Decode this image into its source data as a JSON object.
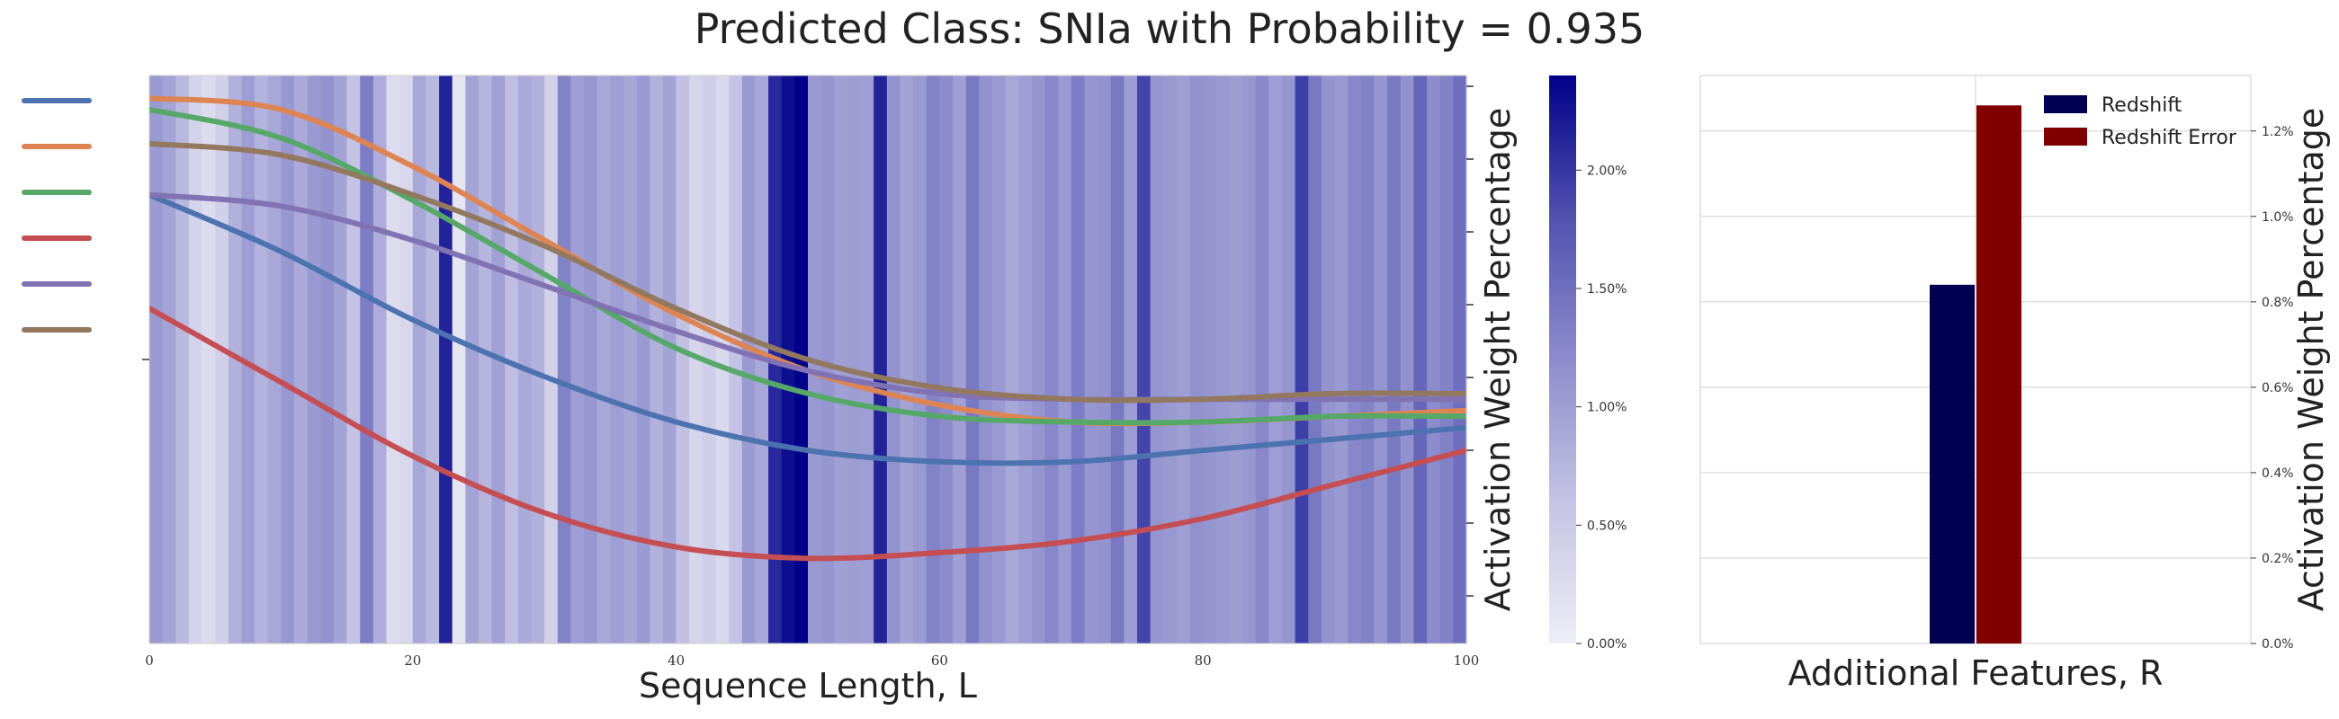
{
  "figure": {
    "title": "Predicted Class: SNIa with Probability = 0.935"
  },
  "chart_data": [
    {
      "type": "heatmap",
      "xlabel": "Sequence Length, L",
      "ylabel": "",
      "xlim": [
        0,
        100
      ],
      "xticks": [
        0,
        20,
        40,
        60,
        80,
        100
      ],
      "attention_weights_percent": [
        1.05,
        0.95,
        0.72,
        0.38,
        0.25,
        0.42,
        0.8,
        1.02,
        0.78,
        0.9,
        1.08,
        0.88,
        1.05,
        1.12,
        0.95,
        0.6,
        1.35,
        0.85,
        0.25,
        0.32,
        0.9,
        0.72,
        2.15,
        0.12,
        0.95,
        0.75,
        0.98,
        0.65,
        0.88,
        0.8,
        0.4,
        1.3,
        1.0,
        1.08,
        0.9,
        1.0,
        0.92,
        1.05,
        0.8,
        0.95,
        0.62,
        0.35,
        0.45,
        0.3,
        0.6,
        1.05,
        0.9,
        2.1,
        2.3,
        2.4,
        1.05,
        1.1,
        0.98,
        1.02,
        1.0,
        2.15,
        1.12,
        0.95,
        1.05,
        1.3,
        1.2,
        0.98,
        1.4,
        1.15,
        1.05,
        0.9,
        1.0,
        1.1,
        1.25,
        1.05,
        1.35,
        1.1,
        1.12,
        1.4,
        1.02,
        1.9,
        1.1,
        1.05,
        1.0,
        1.15,
        1.1,
        1.05,
        1.02,
        1.08,
        1.25,
        1.0,
        1.1,
        1.95,
        1.4,
        1.12,
        1.05,
        1.25,
        1.3,
        1.1,
        1.4,
        1.15,
        1.6,
        1.2,
        1.3,
        1.5
      ],
      "colorbar": {
        "label": "Activation Weight Percentage",
        "range": [
          0,
          2.4
        ],
        "ticks": [
          "0.00%",
          "0.50%",
          "1.00%",
          "1.50%",
          "2.00%"
        ],
        "tick_values": [
          0,
          0.5,
          1.0,
          1.5,
          2.0
        ]
      },
      "series": [
        {
          "color": "#4c72b0",
          "x": [
            0,
            10,
            20,
            30,
            40,
            50,
            60,
            70,
            80,
            90,
            100
          ],
          "y": [
            0.79,
            0.69,
            0.57,
            0.47,
            0.39,
            0.34,
            0.32,
            0.32,
            0.34,
            0.36,
            0.38
          ]
        },
        {
          "color": "#dd8452",
          "x": [
            0,
            10,
            20,
            30,
            40,
            50,
            60,
            70,
            80,
            90,
            100
          ],
          "y": [
            0.96,
            0.94,
            0.84,
            0.71,
            0.58,
            0.48,
            0.42,
            0.39,
            0.39,
            0.4,
            0.41
          ]
        },
        {
          "color": "#55a868",
          "x": [
            0,
            10,
            20,
            30,
            40,
            50,
            60,
            70,
            80,
            90,
            100
          ],
          "y": [
            0.94,
            0.89,
            0.78,
            0.65,
            0.52,
            0.44,
            0.4,
            0.39,
            0.39,
            0.4,
            0.4
          ]
        },
        {
          "color": "#c44e52",
          "x": [
            0,
            10,
            20,
            30,
            40,
            50,
            60,
            70,
            80,
            90,
            100
          ],
          "y": [
            0.59,
            0.46,
            0.33,
            0.23,
            0.17,
            0.15,
            0.16,
            0.18,
            0.22,
            0.28,
            0.34
          ]
        },
        {
          "color": "#8172b3",
          "x": [
            0,
            10,
            20,
            30,
            40,
            50,
            60,
            70,
            80,
            90,
            100
          ],
          "y": [
            0.79,
            0.77,
            0.71,
            0.63,
            0.55,
            0.48,
            0.44,
            0.43,
            0.43,
            0.43,
            0.43
          ]
        },
        {
          "color": "#937860",
          "x": [
            0,
            10,
            20,
            30,
            40,
            50,
            60,
            70,
            80,
            90,
            100
          ],
          "y": [
            0.88,
            0.86,
            0.79,
            0.7,
            0.59,
            0.5,
            0.45,
            0.43,
            0.43,
            0.44,
            0.44
          ]
        }
      ]
    },
    {
      "type": "bar",
      "xlabel": "Additional Features, R",
      "ylabel": "Activation Weight Percentage",
      "ylim": [
        0,
        1.33
      ],
      "yticks": [
        "0.0%",
        "0.2%",
        "0.4%",
        "0.6%",
        "0.8%",
        "1.0%",
        "1.2%"
      ],
      "ytick_values": [
        0,
        0.2,
        0.4,
        0.6,
        0.8,
        1.0,
        1.2
      ],
      "legend_position": "top-right",
      "series": [
        {
          "name": "Redshift",
          "value": 0.84,
          "color": "#000050"
        },
        {
          "name": "Redshift Error",
          "value": 1.26,
          "color": "#800000"
        }
      ]
    }
  ]
}
